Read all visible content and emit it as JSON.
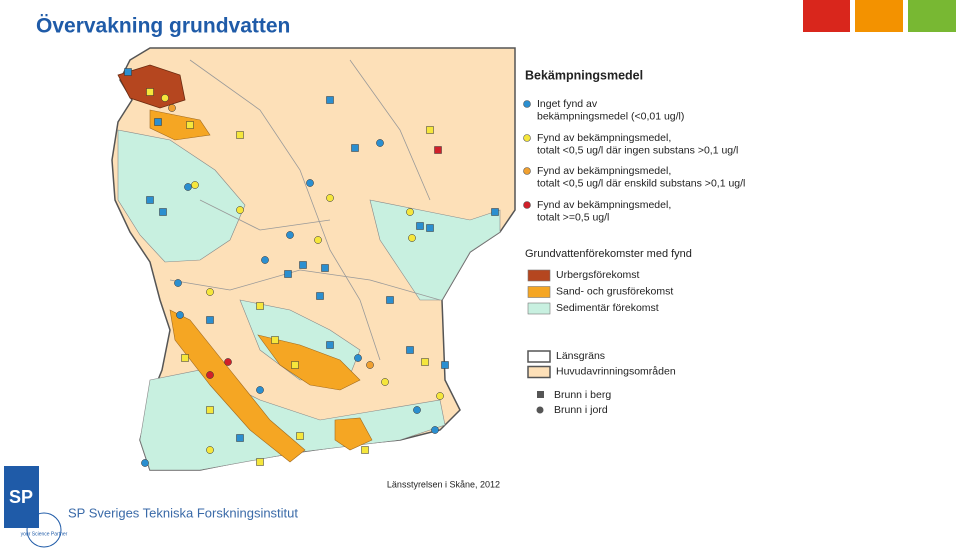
{
  "header": {
    "title": "Övervakning grundvatten"
  },
  "legend": {
    "pesticides": {
      "title": "Bekämpningsmedel",
      "items": [
        {
          "lines": [
            "Inget fynd av",
            "bekämpningsmedel (<0,01 ug/l)"
          ],
          "color": "#2b8fd0"
        },
        {
          "lines": [
            "Fynd av bekämpningsmedel,",
            "totalt <0,5 ug/l där ingen substans >0,1 ug/l"
          ],
          "color": "#f5e63c"
        },
        {
          "lines": [
            "Fynd av bekämpningsmedel,",
            "totalt <0,5 ug/l där enskild substans >0,1 ug/l"
          ],
          "color": "#f0a030"
        },
        {
          "lines": [
            "Fynd av bekämpningsmedel,",
            "totalt >=0,5 ug/l"
          ],
          "color": "#d0202a"
        }
      ]
    },
    "aquifers": {
      "title": "Grundvattenförekomster med fynd",
      "items": [
        {
          "label": "Urbergsförekomst",
          "color": "#b5461f"
        },
        {
          "label": "Sand- och grusförekomst",
          "color": "#f5a623"
        },
        {
          "label": "Sedimentär förekomst",
          "color": "#c8f0e0"
        }
      ]
    },
    "boundaries": {
      "items": [
        {
          "label": "Länsgräns",
          "color": "#555555"
        },
        {
          "label": "Huvudavrinningsområden",
          "color": "#fde0b8"
        }
      ]
    },
    "wells": {
      "items": [
        {
          "label": "Brunn i berg",
          "shape": "square"
        },
        {
          "label": "Brunn i jord",
          "shape": "circle"
        }
      ]
    }
  },
  "map": {
    "source": "Länsstyrelsen i Skåne, 2012"
  },
  "footer": {
    "logo": "SP",
    "tagline": "your Science Partner",
    "organization": "SP Sveriges Tekniska Forskningsinstitut"
  }
}
